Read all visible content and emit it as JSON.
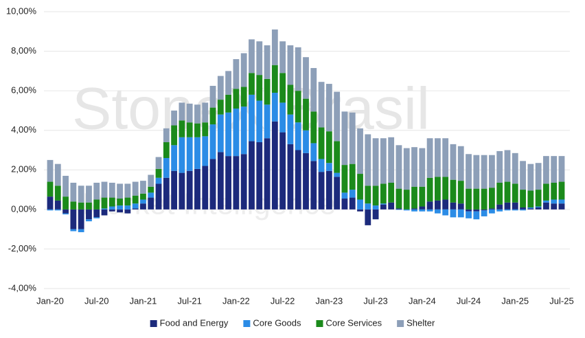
{
  "chart_data": {
    "type": "stacked_bar",
    "watermark": [
      "StoneX Brasil",
      "Market Intelligence"
    ],
    "categories": [
      "Jan-20",
      null,
      null,
      null,
      null,
      null,
      "Jul-20",
      null,
      null,
      null,
      null,
      null,
      "Jan-21",
      null,
      null,
      null,
      null,
      null,
      "Jul-21",
      null,
      null,
      null,
      null,
      null,
      "Jan-22",
      null,
      null,
      null,
      null,
      null,
      "Jul-22",
      null,
      null,
      null,
      null,
      null,
      "Jan-23",
      null,
      null,
      null,
      null,
      null,
      "Jul-23",
      null,
      null,
      null,
      null,
      null,
      "Jan-24",
      null,
      null,
      null,
      null,
      null,
      "Jul-24",
      null,
      null,
      null,
      null,
      null,
      "Jan-25",
      null,
      null,
      null,
      null,
      null,
      "Jul-25"
    ],
    "series": [
      {
        "name": "Food and Energy",
        "color": "#1c2a7c",
        "values": [
          0.65,
          0.45,
          -0.2,
          -1.0,
          -1.0,
          -0.5,
          -0.4,
          -0.3,
          -0.1,
          -0.15,
          -0.2,
          0.05,
          0.3,
          0.6,
          1.3,
          1.6,
          1.95,
          1.85,
          1.95,
          2.05,
          2.2,
          2.55,
          2.9,
          2.7,
          2.7,
          2.8,
          3.45,
          3.4,
          3.6,
          4.45,
          3.9,
          3.3,
          3.0,
          2.85,
          2.45,
          1.9,
          1.95,
          1.65,
          0.55,
          0.6,
          -0.1,
          -0.8,
          -0.5,
          0.25,
          0.35,
          0.05,
          0.0,
          0.05,
          0.15,
          0.4,
          0.45,
          0.5,
          0.35,
          0.3,
          -0.1,
          -0.1,
          -0.05,
          0.05,
          0.25,
          0.35,
          0.35,
          0.1,
          0.05,
          0.1,
          0.35,
          0.3,
          0.3
        ]
      },
      {
        "name": "Core Goods",
        "color": "#2b8ce6",
        "values": [
          -0.05,
          -0.05,
          -0.05,
          -0.1,
          -0.15,
          -0.1,
          -0.05,
          0.05,
          0.15,
          0.2,
          0.2,
          0.25,
          0.2,
          0.25,
          0.3,
          1.0,
          1.3,
          1.8,
          1.7,
          1.6,
          1.5,
          1.75,
          1.9,
          2.2,
          2.4,
          2.4,
          2.35,
          2.1,
          1.7,
          1.45,
          1.5,
          1.5,
          1.4,
          1.15,
          0.9,
          0.65,
          0.4,
          0.2,
          0.3,
          0.4,
          0.5,
          0.3,
          0.2,
          0.05,
          0.0,
          -0.02,
          -0.05,
          -0.1,
          -0.1,
          -0.1,
          -0.2,
          -0.3,
          -0.4,
          -0.4,
          -0.35,
          -0.4,
          -0.3,
          -0.2,
          -0.1,
          -0.05,
          -0.05,
          -0.05,
          0.05,
          0.05,
          0.1,
          0.2,
          0.2
        ]
      },
      {
        "name": "Core Services",
        "color": "#1b8a1b",
        "values": [
          0.75,
          0.75,
          0.65,
          0.4,
          0.35,
          0.35,
          0.5,
          0.55,
          0.45,
          0.35,
          0.4,
          0.4,
          0.3,
          0.3,
          0.45,
          0.8,
          1.0,
          0.85,
          0.75,
          0.7,
          0.7,
          0.85,
          0.75,
          0.9,
          1.0,
          1.0,
          1.1,
          1.3,
          1.3,
          1.4,
          1.5,
          1.5,
          1.6,
          1.6,
          1.6,
          1.6,
          1.6,
          1.6,
          1.4,
          1.3,
          1.3,
          0.9,
          1.0,
          1.0,
          1.0,
          1.0,
          1.0,
          1.1,
          1.0,
          1.2,
          1.2,
          1.15,
          1.15,
          1.15,
          1.05,
          1.05,
          1.05,
          1.05,
          1.1,
          1.05,
          0.95,
          0.9,
          0.85,
          0.85,
          0.85,
          0.85,
          0.9
        ]
      },
      {
        "name": "Shelter",
        "color": "#8d9fb8",
        "values": [
          1.1,
          1.1,
          1.05,
          0.95,
          0.85,
          0.85,
          0.85,
          0.8,
          0.75,
          0.75,
          0.7,
          0.7,
          0.65,
          0.6,
          0.6,
          0.7,
          0.75,
          0.9,
          0.95,
          0.95,
          1.0,
          1.1,
          1.2,
          1.2,
          1.5,
          1.7,
          1.7,
          1.7,
          1.7,
          1.8,
          1.6,
          2.0,
          2.2,
          2.1,
          2.2,
          2.3,
          2.4,
          2.5,
          2.7,
          2.6,
          2.3,
          2.6,
          2.4,
          2.3,
          2.3,
          2.2,
          2.1,
          2.0,
          1.95,
          2.0,
          1.95,
          1.95,
          1.8,
          1.75,
          1.75,
          1.7,
          1.7,
          1.65,
          1.6,
          1.6,
          1.55,
          1.45,
          1.35,
          1.35,
          1.4,
          1.35,
          1.3
        ]
      }
    ],
    "ylim": [
      -4,
      10
    ],
    "yticks": [
      {
        "value": -4,
        "label": "-4,00%"
      },
      {
        "value": -2,
        "label": "-2,00%"
      },
      {
        "value": 0,
        "label": "0,00%"
      },
      {
        "value": 2,
        "label": "2,00%"
      },
      {
        "value": 4,
        "label": "4,00%"
      },
      {
        "value": 6,
        "label": "6,00%"
      },
      {
        "value": 8,
        "label": "8,00%"
      },
      {
        "value": 10,
        "label": "10,00%"
      }
    ],
    "grid": true,
    "legend": "bottom"
  }
}
